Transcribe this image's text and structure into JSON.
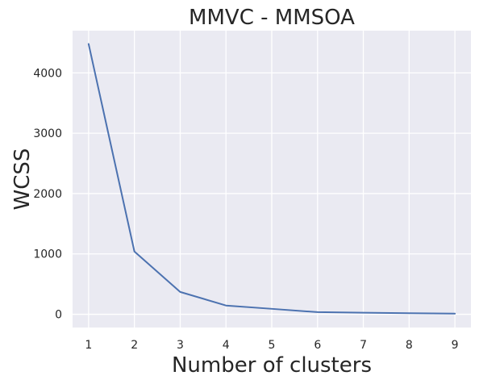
{
  "chart_data": {
    "type": "line",
    "title": "MMVC - MMSOA",
    "xlabel": "Number of clusters",
    "ylabel": "WCSS",
    "x": [
      1,
      2,
      3,
      4,
      5,
      6,
      7,
      8,
      9
    ],
    "series": [
      {
        "values": [
          4480,
          1040,
          370,
          145,
          90,
          35,
          25,
          18,
          10
        ]
      }
    ],
    "xlim": [
      0.65,
      9.35
    ],
    "ylim": [
      -220,
      4700
    ],
    "xticks": [
      "1",
      "2",
      "3",
      "4",
      "5",
      "6",
      "7",
      "8",
      "9"
    ],
    "yticks": [
      "0",
      "1000",
      "2000",
      "3000",
      "4000"
    ],
    "grid": true,
    "legend": "none",
    "colors": {
      "line": "#4c72b0",
      "background": "#eaeaf2",
      "grid": "#ffffff"
    }
  }
}
